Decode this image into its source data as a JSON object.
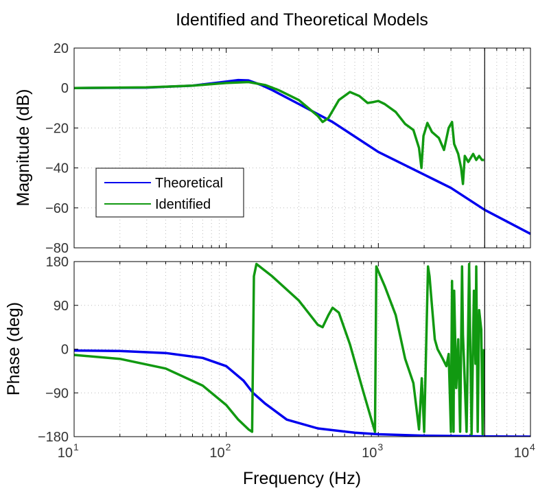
{
  "chart_data": [
    {
      "type": "line",
      "title": "Identified and Theoretical Models",
      "xlabel": "Frequency  (Hz)",
      "ylabel": "Magnitude (dB)",
      "x_scale": "log",
      "xlim": [
        10,
        10000
      ],
      "ylim": [
        -80,
        20
      ],
      "yticks": [
        "20",
        "0",
        "−20",
        "−40",
        "−60",
        "−80"
      ],
      "grid": true,
      "legend_position": "lower-left",
      "marker_frequency": 5000,
      "series": [
        {
          "name": "Theoretical",
          "color": "#0000ee",
          "x": [
            10,
            30,
            60,
            90,
            120,
            140,
            170,
            200,
            300,
            500,
            1000,
            3000,
            5000,
            10000
          ],
          "y": [
            0,
            0.2,
            1.2,
            2.8,
            4,
            3.8,
            1.5,
            -1,
            -8,
            -17,
            -32,
            -50,
            -61,
            -73
          ]
        },
        {
          "name": "Identified",
          "color": "#119911",
          "x": [
            10,
            30,
            60,
            100,
            140,
            180,
            220,
            300,
            400,
            430,
            470,
            550,
            650,
            750,
            850,
            930,
            1000,
            1100,
            1300,
            1500,
            1700,
            1850,
            1920,
            1980,
            2100,
            2250,
            2500,
            2700,
            2900,
            3050,
            3150,
            3350,
            3500,
            3600,
            3700,
            3900,
            4200,
            4400,
            4600,
            4800,
            4950
          ],
          "y": [
            0,
            0.3,
            1.2,
            2.5,
            3,
            1.5,
            -1,
            -6,
            -14,
            -17,
            -15,
            -6,
            -2,
            -4,
            -7.5,
            -7,
            -6.5,
            -8,
            -12,
            -18,
            -21,
            -30,
            -40,
            -24,
            -17.5,
            -22,
            -25,
            -31,
            -20,
            -17,
            -28,
            -33,
            -40,
            -48,
            -34,
            -37,
            -33,
            -36,
            -34,
            -36,
            -36
          ]
        }
      ]
    },
    {
      "type": "line",
      "xlabel": "Frequency  (Hz)",
      "ylabel": "Phase (deg)",
      "x_scale": "log",
      "xlim": [
        10,
        10000
      ],
      "ylim": [
        -180,
        180
      ],
      "yticks": [
        "180",
        "90",
        "0",
        "−90",
        "−180"
      ],
      "xticks": [
        {
          "base": "10",
          "exp": "1"
        },
        {
          "base": "10",
          "exp": "2"
        },
        {
          "base": "10",
          "exp": "3"
        },
        {
          "base": "10",
          "exp": "4"
        }
      ],
      "grid": true,
      "marker_frequency": 5000,
      "series": [
        {
          "name": "Theoretical",
          "color": "#0000ee",
          "x": [
            10,
            20,
            40,
            70,
            100,
            130,
            150,
            180,
            250,
            400,
            700,
            1000,
            2000,
            5000,
            10000
          ],
          "y": [
            -3,
            -4,
            -8,
            -18,
            -35,
            -65,
            -90,
            -112,
            -145,
            -163,
            -172,
            -175,
            -178,
            -179.5,
            -180
          ]
        },
        {
          "name": "Identified",
          "color": "#119911",
          "x": [
            10,
            20,
            40,
            70,
            100,
            120,
            140,
            148,
            152,
            158,
            200,
            300,
            400,
            430,
            470,
            500,
            550,
            650,
            800,
            950,
            970,
            1000,
            1100,
            1300,
            1500,
            1700,
            1850,
            1930,
            2000,
            2120,
            2170,
            2250,
            2350,
            2450,
            2550,
            2650,
            2800,
            2900,
            3000,
            3050,
            3120,
            3150,
            3250,
            3350,
            3450,
            3550,
            3600,
            3650,
            3800,
            3950,
            4100,
            4250,
            4350,
            4400,
            4500,
            4600,
            4750,
            4850,
            4950
          ],
          "y": [
            -12,
            -20,
            -40,
            -75,
            -115,
            -145,
            -165,
            -170,
            150,
            175,
            150,
            100,
            50,
            45,
            70,
            85,
            75,
            10,
            -90,
            -170,
            170,
            160,
            130,
            70,
            -20,
            -70,
            -165,
            -60,
            -170,
            170,
            150,
            90,
            20,
            0,
            -10,
            -20,
            -35,
            -10,
            -170,
            140,
            -170,
            120,
            -80,
            20,
            -170,
            170,
            30,
            -20,
            -170,
            175,
            -175,
            120,
            -30,
            170,
            -170,
            80,
            40,
            -175,
            0
          ]
        }
      ]
    }
  ]
}
